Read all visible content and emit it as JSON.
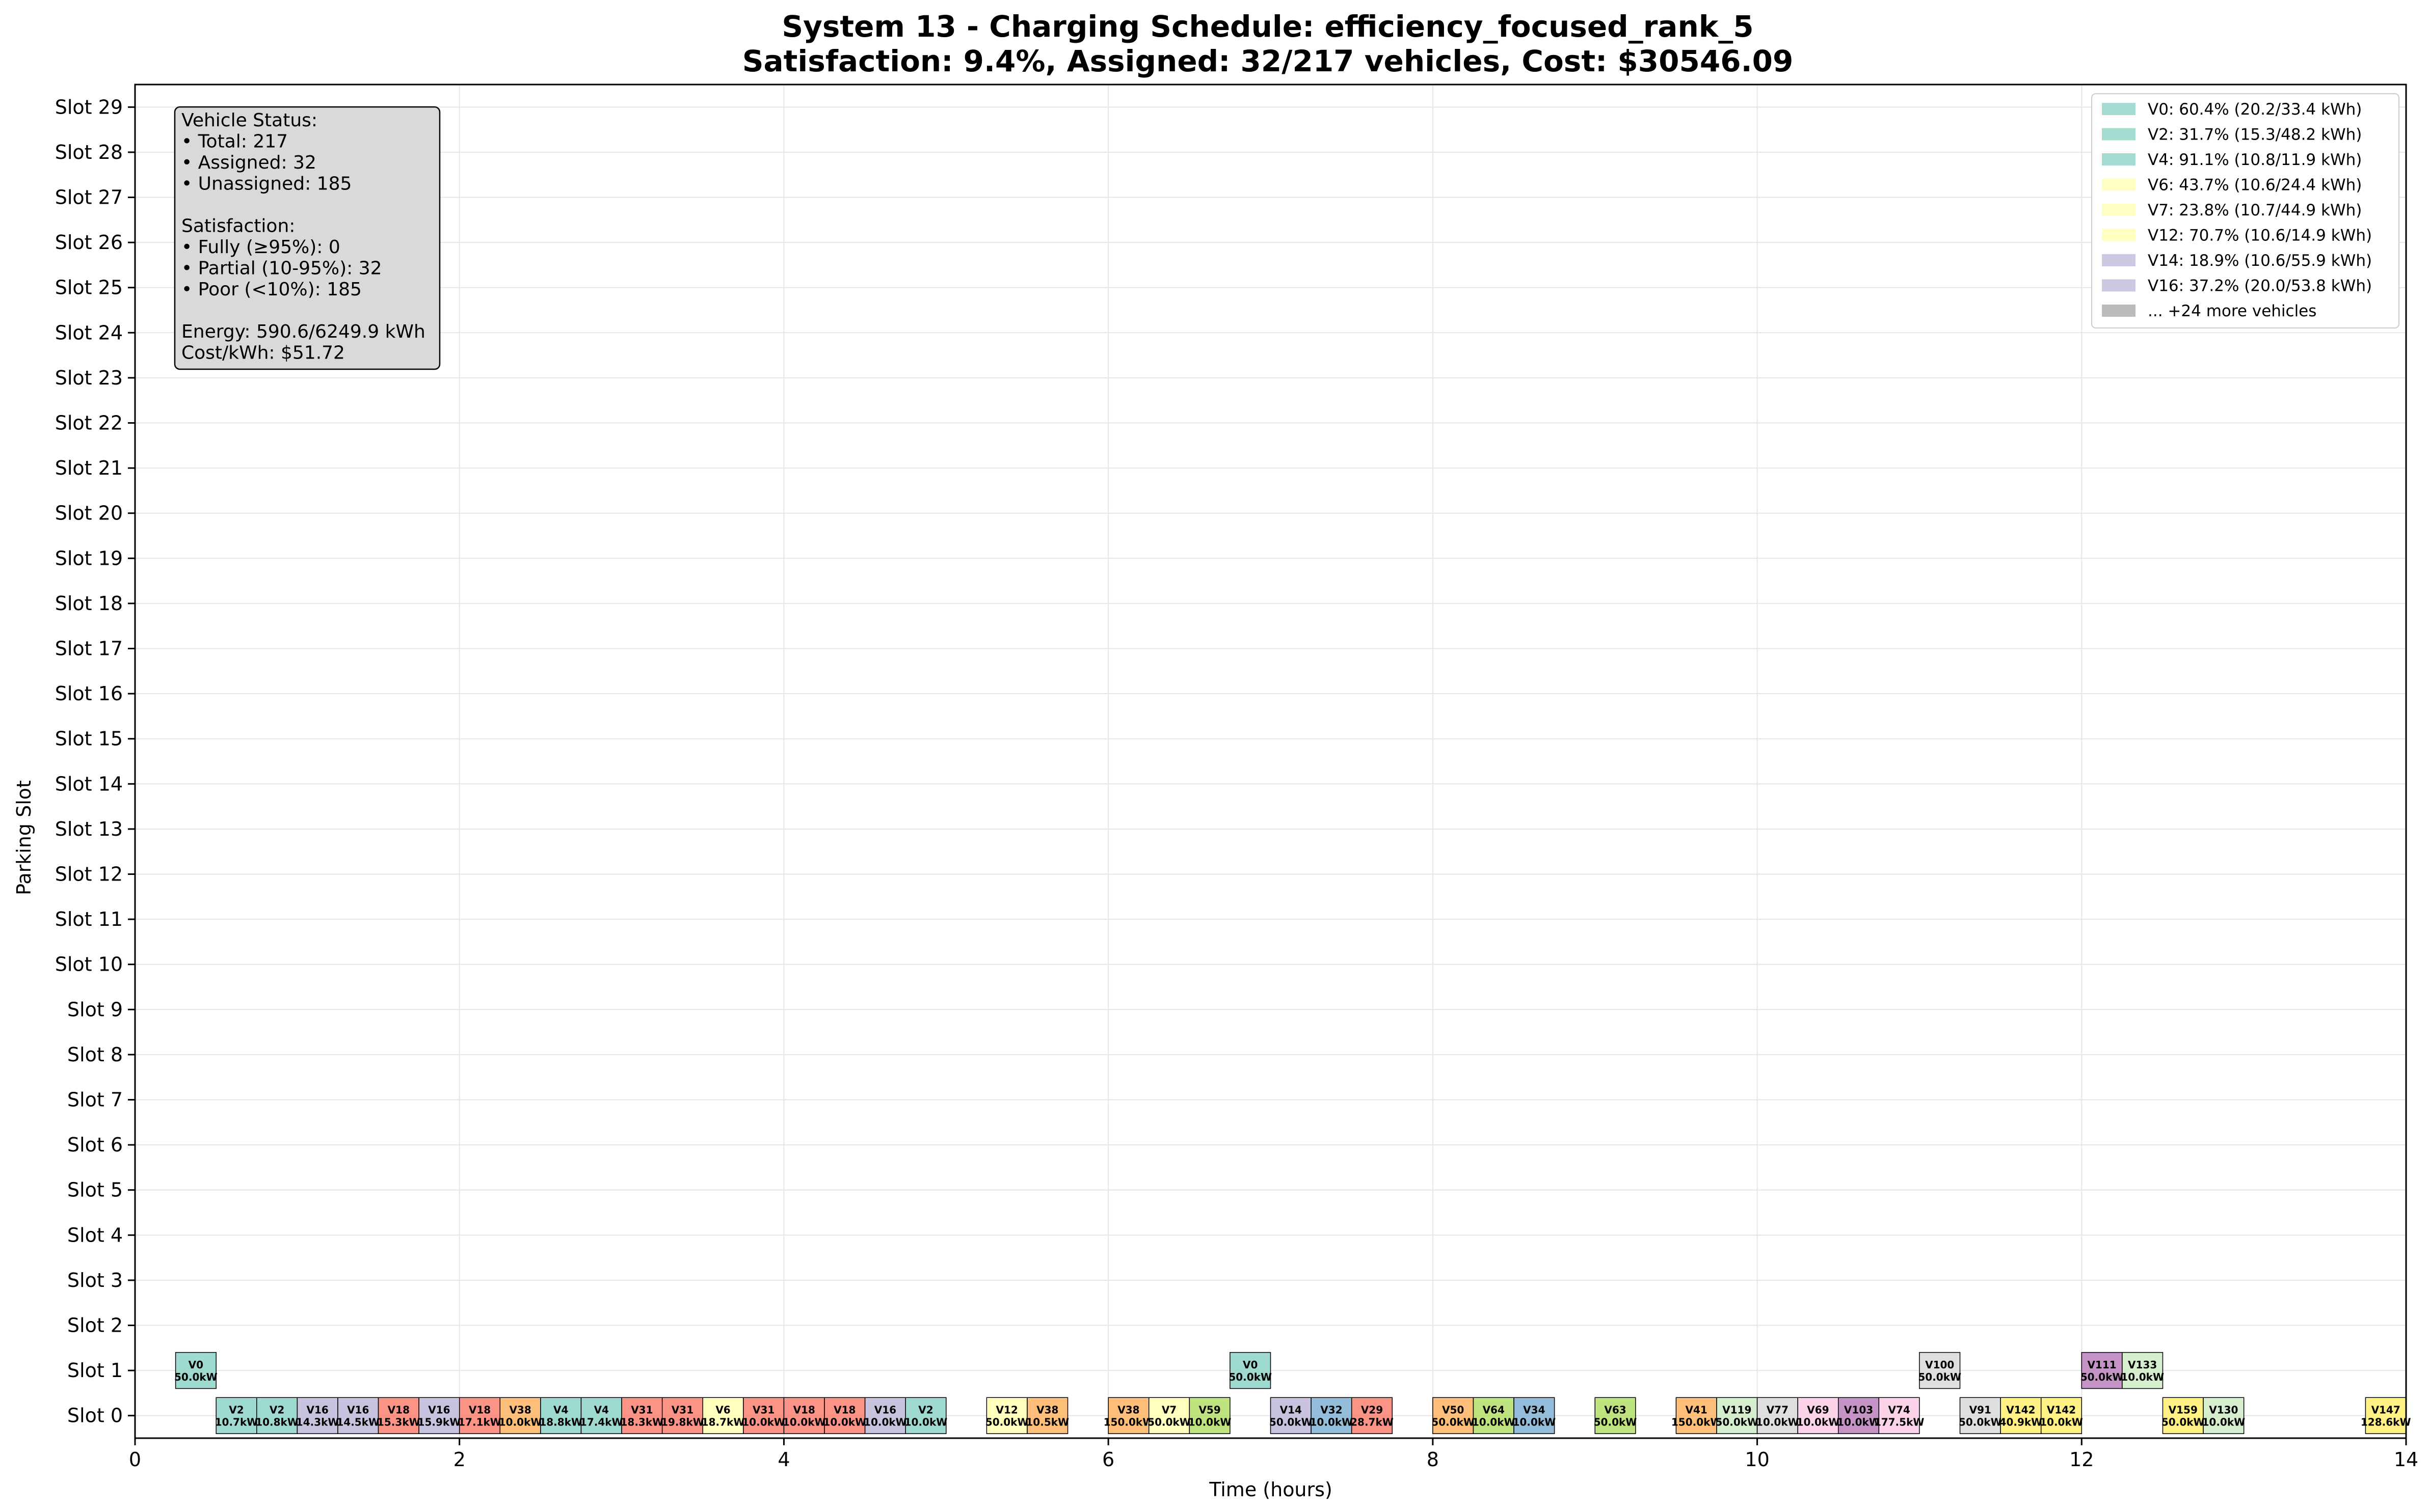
{
  "chart_data": {
    "type": "gantt",
    "title": "System 13 - Charging Schedule: efficiency_focused_rank_5",
    "subtitle": "Satisfaction: 9.4%, Assigned: 32/217 vehicles, Cost: $30546.09",
    "xlabel": "Time (hours)",
    "ylabel": "Parking Slot",
    "xlim": [
      0,
      14
    ],
    "ylim": [
      -0.5,
      29.5
    ],
    "grid": true,
    "x_ticks": [
      "0",
      "2",
      "4",
      "6",
      "8",
      "10",
      "12",
      "14"
    ],
    "y_ticks": [
      "Slot 0",
      "Slot 1",
      "Slot 2",
      "Slot 3",
      "Slot 4",
      "Slot 5",
      "Slot 6",
      "Slot 7",
      "Slot 8",
      "Slot 9",
      "Slot 10",
      "Slot 11",
      "Slot 12",
      "Slot 13",
      "Slot 14",
      "Slot 15",
      "Slot 16",
      "Slot 17",
      "Slot 18",
      "Slot 19",
      "Slot 20",
      "Slot 21",
      "Slot 22",
      "Slot 23",
      "Slot 24",
      "Slot 25",
      "Slot 26",
      "Slot 27",
      "Slot 28",
      "Slot 29"
    ],
    "status_box": [
      "Vehicle Status:",
      "• Total: 217",
      "• Assigned: 32",
      "• Unassigned: 185",
      "",
      "Satisfaction:",
      "• Fully (≥95%): 0",
      "• Partial (10-95%): 32",
      "• Poor (<10%): 185",
      "",
      "Energy: 590.6/6249.9 kWh",
      "Cost/kWh: $51.72"
    ],
    "legend_position": "top-right",
    "legend": [
      {
        "label": "V0: 60.4% (20.2/33.4 kWh)",
        "color": "#8dd3c7"
      },
      {
        "label": "V2: 31.7% (15.3/48.2 kWh)",
        "color": "#8dd3c7"
      },
      {
        "label": "V4: 91.1% (10.8/11.9 kWh)",
        "color": "#8dd3c7"
      },
      {
        "label": "V6: 43.7% (10.6/24.4 kWh)",
        "color": "#ffffb3"
      },
      {
        "label": "V7: 23.8% (10.7/44.9 kWh)",
        "color": "#ffffb3"
      },
      {
        "label": "V12: 70.7% (10.6/14.9 kWh)",
        "color": "#ffffb3"
      },
      {
        "label": "V14: 18.9% (10.6/55.9 kWh)",
        "color": "#bebada"
      },
      {
        "label": "V16: 37.2% (20.0/53.8 kWh)",
        "color": "#bebada"
      },
      {
        "label": "... +24 more vehicles",
        "color": "#aaaaaa"
      }
    ],
    "blocks": [
      {
        "vehicle": "V0",
        "power": "50.0kW",
        "slot": 1,
        "start": 0.25,
        "end": 0.5,
        "color": "#8dd3c7"
      },
      {
        "vehicle": "V2",
        "power": "10.7kW",
        "slot": 0,
        "start": 0.5,
        "end": 0.75,
        "color": "#8dd3c7"
      },
      {
        "vehicle": "V2",
        "power": "10.8kW",
        "slot": 0,
        "start": 0.75,
        "end": 1.0,
        "color": "#8dd3c7"
      },
      {
        "vehicle": "V16",
        "power": "14.3kW",
        "slot": 0,
        "start": 1.0,
        "end": 1.25,
        "color": "#bebada"
      },
      {
        "vehicle": "V16",
        "power": "14.5kW",
        "slot": 0,
        "start": 1.25,
        "end": 1.5,
        "color": "#bebada"
      },
      {
        "vehicle": "V18",
        "power": "15.3kW",
        "slot": 0,
        "start": 1.5,
        "end": 1.75,
        "color": "#fb8072"
      },
      {
        "vehicle": "V16",
        "power": "15.9kW",
        "slot": 0,
        "start": 1.75,
        "end": 2.0,
        "color": "#bebada"
      },
      {
        "vehicle": "V18",
        "power": "17.1kW",
        "slot": 0,
        "start": 2.0,
        "end": 2.25,
        "color": "#fb8072"
      },
      {
        "vehicle": "V38",
        "power": "10.0kW",
        "slot": 0,
        "start": 2.25,
        "end": 2.5,
        "color": "#fdb462"
      },
      {
        "vehicle": "V4",
        "power": "18.8kW",
        "slot": 0,
        "start": 2.5,
        "end": 2.75,
        "color": "#8dd3c7"
      },
      {
        "vehicle": "V4",
        "power": "17.4kW",
        "slot": 0,
        "start": 2.75,
        "end": 3.0,
        "color": "#8dd3c7"
      },
      {
        "vehicle": "V31",
        "power": "18.3kW",
        "slot": 0,
        "start": 3.0,
        "end": 3.25,
        "color": "#fb8072"
      },
      {
        "vehicle": "V31",
        "power": "19.8kW",
        "slot": 0,
        "start": 3.25,
        "end": 3.5,
        "color": "#fb8072"
      },
      {
        "vehicle": "V6",
        "power": "18.7kW",
        "slot": 0,
        "start": 3.5,
        "end": 3.75,
        "color": "#ffffb3"
      },
      {
        "vehicle": "V31",
        "power": "10.0kW",
        "slot": 0,
        "start": 3.75,
        "end": 4.0,
        "color": "#fb8072"
      },
      {
        "vehicle": "V18",
        "power": "10.0kW",
        "slot": 0,
        "start": 4.0,
        "end": 4.25,
        "color": "#fb8072"
      },
      {
        "vehicle": "V18",
        "power": "10.0kW",
        "slot": 0,
        "start": 4.25,
        "end": 4.5,
        "color": "#fb8072"
      },
      {
        "vehicle": "V16",
        "power": "10.0kW",
        "slot": 0,
        "start": 4.5,
        "end": 4.75,
        "color": "#bebada"
      },
      {
        "vehicle": "V2",
        "power": "10.0kW",
        "slot": 0,
        "start": 4.75,
        "end": 5.0,
        "color": "#8dd3c7"
      },
      {
        "vehicle": "V12",
        "power": "50.0kW",
        "slot": 0,
        "start": 5.25,
        "end": 5.5,
        "color": "#ffffb3"
      },
      {
        "vehicle": "V38",
        "power": "10.5kW",
        "slot": 0,
        "start": 5.5,
        "end": 5.75,
        "color": "#fdb462"
      },
      {
        "vehicle": "V38",
        "power": "150.0kW",
        "slot": 0,
        "start": 6.0,
        "end": 6.25,
        "color": "#fdb462"
      },
      {
        "vehicle": "V7",
        "power": "50.0kW",
        "slot": 0,
        "start": 6.25,
        "end": 6.5,
        "color": "#ffffb3"
      },
      {
        "vehicle": "V59",
        "power": "10.0kW",
        "slot": 0,
        "start": 6.5,
        "end": 6.75,
        "color": "#b3de69"
      },
      {
        "vehicle": "V0",
        "power": "50.0kW",
        "slot": 1,
        "start": 6.75,
        "end": 7.0,
        "color": "#8dd3c7"
      },
      {
        "vehicle": "V14",
        "power": "50.0kW",
        "slot": 0,
        "start": 7.0,
        "end": 7.25,
        "color": "#bebada"
      },
      {
        "vehicle": "V32",
        "power": "10.0kW",
        "slot": 0,
        "start": 7.25,
        "end": 7.5,
        "color": "#80b1d3"
      },
      {
        "vehicle": "V29",
        "power": "28.7kW",
        "slot": 0,
        "start": 7.5,
        "end": 7.75,
        "color": "#fb8072"
      },
      {
        "vehicle": "V50",
        "power": "50.0kW",
        "slot": 0,
        "start": 8.0,
        "end": 8.25,
        "color": "#fdb462"
      },
      {
        "vehicle": "V64",
        "power": "10.0kW",
        "slot": 0,
        "start": 8.25,
        "end": 8.5,
        "color": "#b3de69"
      },
      {
        "vehicle": "V34",
        "power": "10.0kW",
        "slot": 0,
        "start": 8.5,
        "end": 8.75,
        "color": "#80b1d3"
      },
      {
        "vehicle": "V63",
        "power": "50.0kW",
        "slot": 0,
        "start": 9.0,
        "end": 9.25,
        "color": "#b3de69"
      },
      {
        "vehicle": "V41",
        "power": "150.0kW",
        "slot": 0,
        "start": 9.5,
        "end": 9.75,
        "color": "#fdb462"
      },
      {
        "vehicle": "V119",
        "power": "50.0kW",
        "slot": 0,
        "start": 9.75,
        "end": 10.0,
        "color": "#ccebc5"
      },
      {
        "vehicle": "V77",
        "power": "10.0kW",
        "slot": 0,
        "start": 10.0,
        "end": 10.25,
        "color": "#d9d9d9"
      },
      {
        "vehicle": "V69",
        "power": "10.0kW",
        "slot": 0,
        "start": 10.25,
        "end": 10.5,
        "color": "#fccde5"
      },
      {
        "vehicle": "V103",
        "power": "10.0kW",
        "slot": 0,
        "start": 10.5,
        "end": 10.75,
        "color": "#bc80bd"
      },
      {
        "vehicle": "V74",
        "power": "177.5kW",
        "slot": 0,
        "start": 10.75,
        "end": 11.0,
        "color": "#fccde5"
      },
      {
        "vehicle": "V100",
        "power": "50.0kW",
        "slot": 1,
        "start": 11.0,
        "end": 11.25,
        "color": "#d9d9d9"
      },
      {
        "vehicle": "V91",
        "power": "50.0kW",
        "slot": 0,
        "start": 11.25,
        "end": 11.5,
        "color": "#d9d9d9"
      },
      {
        "vehicle": "V142",
        "power": "40.9kW",
        "slot": 0,
        "start": 11.5,
        "end": 11.75,
        "color": "#ffed6f"
      },
      {
        "vehicle": "V142",
        "power": "10.0kW",
        "slot": 0,
        "start": 11.75,
        "end": 12.0,
        "color": "#ffed6f"
      },
      {
        "vehicle": "V111",
        "power": "50.0kW",
        "slot": 1,
        "start": 12.0,
        "end": 12.25,
        "color": "#bc80bd"
      },
      {
        "vehicle": "V133",
        "power": "10.0kW",
        "slot": 1,
        "start": 12.25,
        "end": 12.5,
        "color": "#ccebc5"
      },
      {
        "vehicle": "V159",
        "power": "50.0kW",
        "slot": 0,
        "start": 12.5,
        "end": 12.75,
        "color": "#ffed6f"
      },
      {
        "vehicle": "V130",
        "power": "10.0kW",
        "slot": 0,
        "start": 12.75,
        "end": 13.0,
        "color": "#ccebc5"
      },
      {
        "vehicle": "V147",
        "power": "128.6kW",
        "slot": 0,
        "start": 13.75,
        "end": 14.0,
        "color": "#ffed6f"
      }
    ]
  }
}
